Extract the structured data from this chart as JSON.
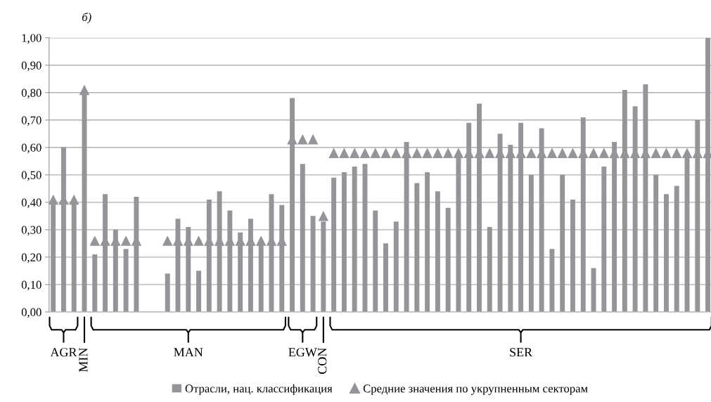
{
  "chart_data": {
    "type": "bar",
    "title": "б)",
    "categories": [
      null,
      null,
      null,
      null,
      null,
      null,
      null,
      null,
      null,
      null,
      null,
      null,
      null,
      null,
      null,
      null,
      null,
      null,
      null,
      null,
      null,
      null,
      null,
      null,
      null,
      null,
      null,
      null,
      null,
      null,
      null,
      null,
      null,
      null,
      null,
      null,
      null,
      null,
      null,
      null,
      null,
      null,
      null,
      null,
      null,
      null,
      null,
      null,
      null,
      null,
      null,
      null,
      null,
      null,
      null,
      null,
      null,
      null,
      null,
      null,
      null,
      null,
      null,
      null
    ],
    "series": [
      {
        "name": "Отрасли, нац. классификация",
        "color": "#939598",
        "values": [
          0.4,
          0.6,
          0.4,
          0.8,
          0.21,
          0.43,
          0.3,
          0.23,
          0.42,
          null,
          null,
          0.14,
          0.34,
          0.31,
          0.15,
          0.41,
          0.44,
          0.37,
          0.29,
          0.34,
          0.25,
          0.43,
          0.39,
          0.78,
          0.54,
          0.35,
          0.33,
          0.49,
          0.51,
          0.53,
          0.54,
          0.37,
          0.25,
          0.33,
          0.62,
          0.47,
          0.51,
          0.44,
          0.38,
          0.57,
          0.69,
          0.76,
          0.31,
          0.65,
          0.61,
          0.69,
          0.5,
          0.67,
          0.23,
          0.5,
          0.41,
          0.71,
          0.16,
          0.53,
          0.62,
          0.81,
          0.75,
          0.83,
          0.5,
          0.43,
          0.46,
          0.57,
          0.7,
          1.0
        ]
      },
      {
        "name": "Средние значения по укрупненным секторам",
        "type": "scatter",
        "marker": "triangle",
        "color": "#939598",
        "values": [
          0.41,
          0.41,
          0.41,
          0.81,
          0.26,
          0.26,
          0.26,
          0.26,
          0.26,
          null,
          null,
          0.26,
          0.26,
          0.26,
          0.26,
          0.26,
          0.26,
          0.26,
          0.26,
          0.26,
          0.26,
          0.26,
          0.26,
          0.63,
          0.63,
          0.63,
          0.35,
          0.58,
          0.58,
          0.58,
          0.58,
          0.58,
          0.58,
          0.58,
          0.58,
          0.58,
          0.58,
          0.58,
          0.58,
          0.58,
          0.58,
          0.58,
          0.58,
          0.58,
          0.58,
          0.58,
          0.58,
          0.58,
          0.58,
          0.58,
          0.58,
          0.58,
          0.58,
          0.58,
          0.58,
          0.58,
          0.58,
          0.58,
          0.58,
          0.58,
          0.58,
          0.58,
          0.58,
          0.58
        ]
      }
    ],
    "ylim": [
      0,
      1
    ],
    "yticks": [
      {
        "value": 0,
        "label": "0,00"
      },
      {
        "value": 0.1,
        "label": "0,10"
      },
      {
        "value": 0.2,
        "label": "0,20"
      },
      {
        "value": 0.3,
        "label": "0,30"
      },
      {
        "value": 0.4,
        "label": "0,40"
      },
      {
        "value": 0.5,
        "label": "0,50"
      },
      {
        "value": 0.6,
        "label": "0,60"
      },
      {
        "value": 0.7,
        "label": "0,70"
      },
      {
        "value": 0.8,
        "label": "0,80"
      },
      {
        "value": 0.9,
        "label": "0,90"
      },
      {
        "value": 1,
        "label": "1,00"
      }
    ],
    "grid": "y",
    "legend": "bottom",
    "tick_labels": "y",
    "annotations": [
      "AGR",
      "MIN",
      "MAN",
      "EGW",
      "CON",
      "SER"
    ]
  }
}
